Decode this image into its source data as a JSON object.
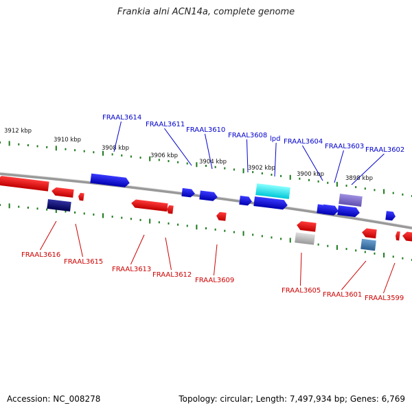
{
  "title": "Frankia alni ACN14a, complete genome",
  "footer": {
    "accession": "Accession: NC_008278",
    "summary": "Topology: circular; Length: 7,497,934 bp; Genes: 6,769"
  },
  "colors": {
    "forward": "#1010e0",
    "reverse": "#ee1111",
    "label_forward": "#0000cc",
    "label_reverse": "#cc0000",
    "tick": "#1a7a1a",
    "backbone": "#888888"
  },
  "scale_ticks": [
    {
      "label": "3912 kbp"
    },
    {
      "label": "3910 kbp"
    },
    {
      "label": "3908 kbp"
    },
    {
      "label": "3906 kbp"
    },
    {
      "label": "3904 kbp"
    },
    {
      "label": "3902 kbp"
    },
    {
      "label": "3900 kbp"
    },
    {
      "label": "3898 kbp"
    }
  ],
  "forward_labels": [
    "FRAAL3614",
    "FRAAL3611",
    "FRAAL3610",
    "FRAAL3608",
    "lpd",
    "FRAAL3604",
    "FRAAL3603",
    "FRAAL3602"
  ],
  "reverse_labels": [
    "FRAAL3616",
    "FRAAL3615",
    "FRAAL3613",
    "FRAAL3612",
    "FRAAL3609",
    "FRAAL3605",
    "FRAAL3601",
    "FRAAL3599"
  ]
}
